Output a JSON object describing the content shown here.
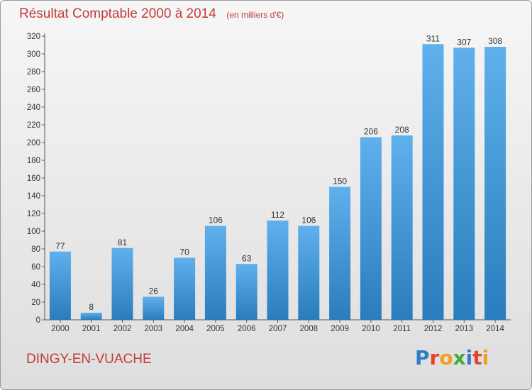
{
  "chart_data": {
    "type": "bar",
    "title": "Résultat Comptable 2000 à 2014",
    "subtitle": "(en milliers d'€)",
    "categories": [
      "2000",
      "2001",
      "2002",
      "2003",
      "2004",
      "2005",
      "2006",
      "2007",
      "2008",
      "2009",
      "2010",
      "2011",
      "2012",
      "2013",
      "2014"
    ],
    "values": [
      77,
      8,
      81,
      26,
      70,
      106,
      63,
      112,
      106,
      150,
      206,
      208,
      311,
      307,
      308
    ],
    "ylim": [
      0,
      320
    ],
    "yticks": [
      0,
      20,
      40,
      60,
      80,
      100,
      120,
      140,
      160,
      180,
      200,
      220,
      240,
      260,
      280,
      300,
      320
    ],
    "grid": false,
    "bar_color": "#4e9fdd",
    "xlabel": "",
    "ylabel": ""
  },
  "footer": {
    "commune": "DINGY-EN-VUACHE",
    "logo_text": "Proxiti"
  },
  "colors": {
    "title": "#c43a3a",
    "logo_letters": [
      "#2f7fc8",
      "#e8412e",
      "#f0a020",
      "#49a83a",
      "#2f7fc8",
      "#e8412e",
      "#f0a020"
    ]
  }
}
